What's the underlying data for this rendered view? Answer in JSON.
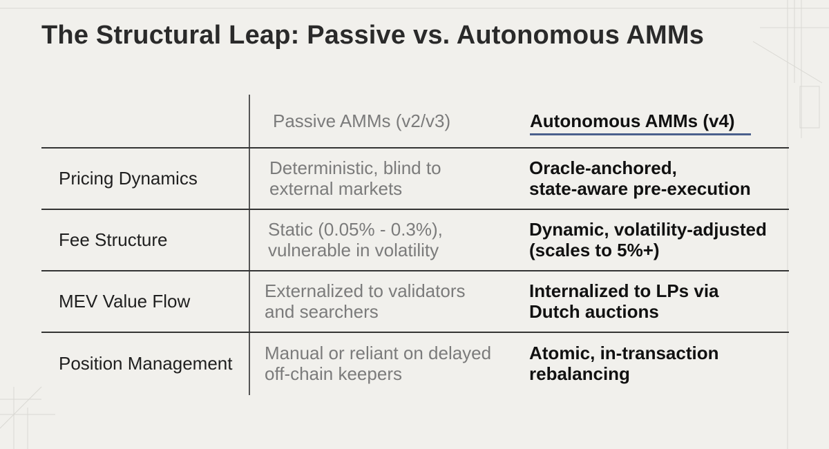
{
  "title": "The Structural Leap: Passive vs. Autonomous AMMs",
  "columns": {
    "passive": "Passive AMMs (v2/v3)",
    "autonomous": "Autonomous AMMs (v4)"
  },
  "rows": [
    {
      "label": "Pricing Dynamics",
      "passive": [
        "Deterministic, blind to",
        "external markets"
      ],
      "autonomous": [
        "Oracle-anchored,",
        "state-aware pre-execution"
      ]
    },
    {
      "label": "Fee Structure",
      "passive": [
        "Static (0.05% - 0.3%),",
        "vulnerable in volatility"
      ],
      "autonomous": [
        "Dynamic, volatility-adjusted",
        "(scales to 5%+)"
      ]
    },
    {
      "label": "MEV Value Flow",
      "passive": [
        "Externalized to validators",
        "and searchers"
      ],
      "autonomous": [
        "Internalized to LPs via",
        "Dutch auctions"
      ]
    },
    {
      "label": "Position Management",
      "passive": [
        "Manual or reliant on delayed",
        "off-chain keepers"
      ],
      "autonomous": [
        "Atomic, in-transaction",
        "rebalancing"
      ]
    }
  ],
  "colors": {
    "background": "#f1f0ec",
    "accent_underline": "#4a5f8c",
    "passive_text": "#7b7b7b",
    "emphasis_text": "#111111"
  }
}
